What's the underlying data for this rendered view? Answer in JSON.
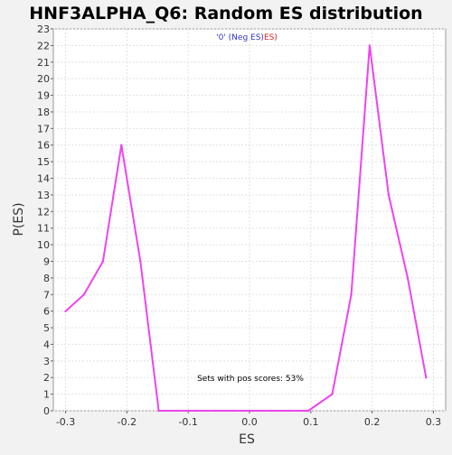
{
  "chart_data": {
    "type": "line",
    "title": "HNF3ALPHA_Q6: Random ES distribution",
    "subtitle_prefix": "'0' (Neg ES)",
    "subtitle_suffix": "ES)",
    "xlabel": "ES",
    "ylabel": "P(ES)",
    "annotation": "Sets with pos scores: 53%",
    "xlim": [
      -0.32,
      0.32
    ],
    "ylim": [
      0,
      23
    ],
    "x_ticks": [
      -0.3,
      -0.2,
      -0.1,
      0.0,
      0.1,
      0.2,
      0.3
    ],
    "x_tick_labels": [
      "-0.3",
      "-0.2",
      "-0.1",
      "0.0",
      "0.1",
      "0.2",
      "0.3"
    ],
    "y_ticks": [
      0,
      1,
      2,
      3,
      4,
      5,
      6,
      7,
      8,
      9,
      10,
      11,
      12,
      13,
      14,
      15,
      16,
      17,
      18,
      19,
      20,
      21,
      22,
      23
    ],
    "y_tick_labels": [
      "0",
      "1",
      "2",
      "3",
      "4",
      "5",
      "6",
      "7",
      "8",
      "9",
      "10",
      "11",
      "12",
      "13",
      "14",
      "15",
      "16",
      "17",
      "18",
      "19",
      "20",
      "21",
      "22",
      "23"
    ],
    "grid": true,
    "colors": {
      "line": "#ee44ee",
      "subtitle_neg": "#3333cc",
      "subtitle_pos": "#dd2222",
      "plot_bg": "#ffffff",
      "page_bg": "#f2f2f2",
      "grid": "#e0e0e0"
    },
    "series": [
      {
        "x": [
          -0.3,
          -0.27,
          -0.239,
          -0.209,
          -0.178,
          -0.148,
          -0.117,
          -0.087,
          -0.056,
          -0.026,
          0.005,
          0.035,
          0.066,
          0.096,
          0.135,
          0.166,
          0.196,
          0.227,
          0.258,
          0.288
        ],
        "values": [
          6,
          7,
          9,
          16,
          9,
          0,
          0,
          0,
          0,
          0,
          0,
          0,
          0,
          0,
          1,
          7,
          22,
          13,
          8,
          2
        ]
      }
    ]
  }
}
